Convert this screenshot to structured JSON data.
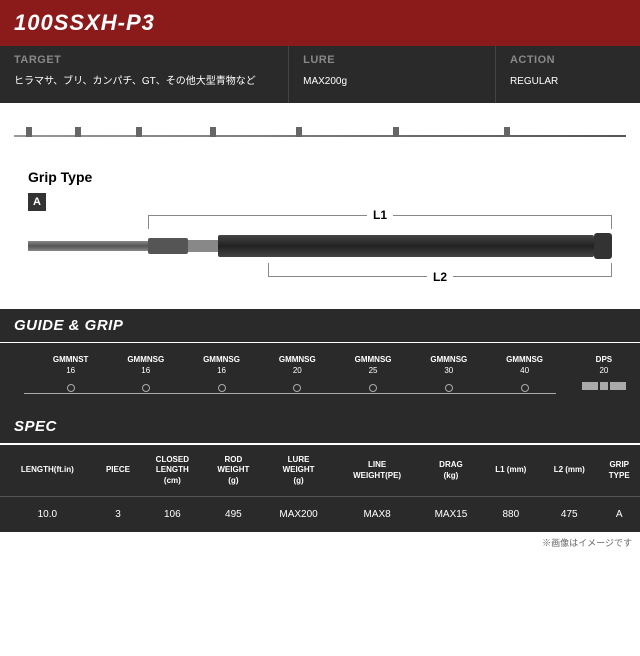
{
  "colors": {
    "title_bg": "#8b1a1a",
    "info_bg": "#2a2a2a",
    "label_gray": "#888888"
  },
  "title": "100SSXH-P3",
  "info": {
    "target_label": "TARGET",
    "target_value": "ヒラマサ、ブリ、カンパチ、GT、その他大型青物など",
    "lure_label": "LURE",
    "lure_value": "MAX200g",
    "action_label": "ACTION",
    "action_value": "REGULAR"
  },
  "diagram": {
    "grip_type_label": "Grip Type",
    "grip_badge": "A",
    "l1_label": "L1",
    "l2_label": "L2"
  },
  "guide_grip": {
    "header": "GUIDE & GRIP",
    "items": [
      {
        "name": "GMMNST",
        "size": "16"
      },
      {
        "name": "GMMNSG",
        "size": "16"
      },
      {
        "name": "GMMNSG",
        "size": "16"
      },
      {
        "name": "GMMNSG",
        "size": "20"
      },
      {
        "name": "GMMNSG",
        "size": "25"
      },
      {
        "name": "GMMNSG",
        "size": "30"
      },
      {
        "name": "GMMNSG",
        "size": "40"
      }
    ],
    "dps": {
      "name": "DPS",
      "size": "20"
    }
  },
  "spec": {
    "header": "SPEC",
    "columns": [
      "LENGTH(ft.in)",
      "PIECE",
      "CLOSED\nLENGTH\n(cm)",
      "ROD\nWEIGHT\n(g)",
      "LURE\nWEIGHT\n(g)",
      "LINE\nWEIGHT(PE)",
      "DRAG\n(kg)",
      "L1 (mm)",
      "L2 (mm)",
      "GRIP\nTYPE"
    ],
    "row": [
      "10.0",
      "3",
      "106",
      "495",
      "MAX200",
      "MAX8",
      "MAX15",
      "880",
      "475",
      "A"
    ]
  },
  "footnote": "※画像はイメージです"
}
